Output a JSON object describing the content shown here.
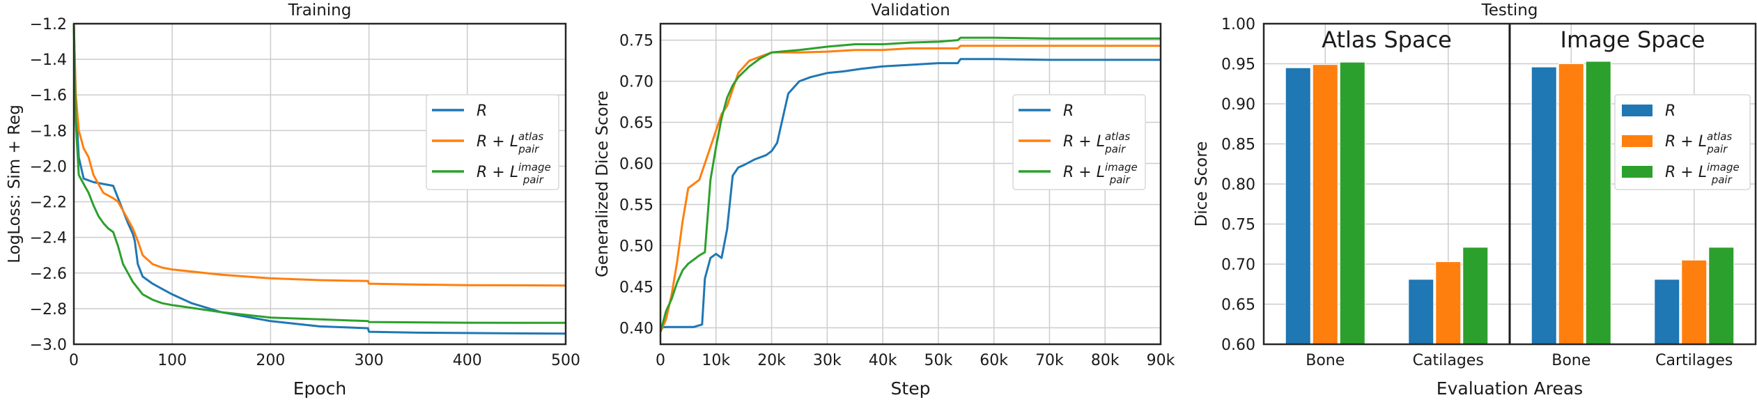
{
  "chart_data": [
    {
      "type": "line",
      "title": "Training",
      "xlabel": "Epoch",
      "ylabel": "LogLoss: Sim + Reg",
      "xlim": [
        0,
        500
      ],
      "ylim": [
        -3.0,
        -1.2
      ],
      "xticks": [
        0,
        100,
        200,
        300,
        400,
        500
      ],
      "xtick_labels": [
        "0",
        "100",
        "200",
        "300",
        "400",
        "500"
      ],
      "yticks": [
        -3.0,
        -2.8,
        -2.6,
        -2.4,
        -2.2,
        -2.0,
        -1.8,
        -1.6,
        -1.4,
        -1.2
      ],
      "ytick_labels": [
        "−3.0",
        "−2.8",
        "−2.6",
        "−2.4",
        "−2.2",
        "−2.0",
        "−1.8",
        "−1.6",
        "−1.4",
        "−1.2"
      ],
      "grid": true,
      "legend_position": "upper-right",
      "series": [
        {
          "name": "R",
          "color": "#1f77b4",
          "x": [
            0,
            2,
            5,
            10,
            20,
            30,
            40,
            45,
            50,
            55,
            60,
            62,
            65,
            70,
            80,
            90,
            100,
            120,
            150,
            200,
            250,
            299,
            300,
            350,
            400,
            450,
            500
          ],
          "y": [
            -1.2,
            -1.65,
            -1.95,
            -2.07,
            -2.09,
            -2.1,
            -2.11,
            -2.18,
            -2.25,
            -2.32,
            -2.38,
            -2.42,
            -2.55,
            -2.62,
            -2.66,
            -2.69,
            -2.72,
            -2.77,
            -2.82,
            -2.87,
            -2.9,
            -2.91,
            -2.93,
            -2.935,
            -2.937,
            -2.939,
            -2.94
          ]
        },
        {
          "name": "R + L_pair^atlas",
          "color": "#ff7f0e",
          "x": [
            0,
            2,
            5,
            10,
            15,
            20,
            30,
            40,
            45,
            50,
            55,
            60,
            65,
            70,
            80,
            90,
            100,
            150,
            200,
            250,
            299,
            300,
            350,
            400,
            450,
            500
          ],
          "y": [
            -1.2,
            -1.6,
            -1.8,
            -1.9,
            -1.95,
            -2.05,
            -2.15,
            -2.18,
            -2.2,
            -2.25,
            -2.3,
            -2.35,
            -2.42,
            -2.5,
            -2.55,
            -2.57,
            -2.58,
            -2.61,
            -2.63,
            -2.64,
            -2.645,
            -2.66,
            -2.665,
            -2.668,
            -2.669,
            -2.67
          ]
        },
        {
          "name": "R + L_pair^image",
          "color": "#2ca02c",
          "x": [
            0,
            2,
            5,
            10,
            15,
            20,
            25,
            30,
            35,
            40,
            45,
            50,
            55,
            60,
            70,
            80,
            90,
            100,
            150,
            200,
            250,
            299,
            300,
            350,
            400,
            450,
            500
          ],
          "y": [
            -1.2,
            -1.75,
            -2.05,
            -2.1,
            -2.15,
            -2.22,
            -2.28,
            -2.32,
            -2.35,
            -2.37,
            -2.45,
            -2.55,
            -2.6,
            -2.65,
            -2.72,
            -2.75,
            -2.77,
            -2.78,
            -2.82,
            -2.85,
            -2.86,
            -2.87,
            -2.875,
            -2.877,
            -2.879,
            -2.88,
            -2.88
          ]
        }
      ]
    },
    {
      "type": "line",
      "title": "Validation",
      "xlabel": "Step",
      "ylabel": "Generalized Dice Score",
      "xlim": [
        0,
        90000
      ],
      "ylim": [
        0.38,
        0.77
      ],
      "xticks": [
        0,
        10000,
        20000,
        30000,
        40000,
        50000,
        60000,
        70000,
        80000,
        90000
      ],
      "xtick_labels": [
        "0",
        "10k",
        "20k",
        "30k",
        "40k",
        "50k",
        "60k",
        "70k",
        "80k",
        "90k"
      ],
      "yticks": [
        0.4,
        0.45,
        0.5,
        0.55,
        0.6,
        0.65,
        0.7,
        0.75
      ],
      "ytick_labels": [
        "0.40",
        "0.45",
        "0.50",
        "0.55",
        "0.60",
        "0.65",
        "0.70",
        "0.75"
      ],
      "grid": true,
      "legend_position": "center-right",
      "series": [
        {
          "name": "R",
          "color": "#1f77b4",
          "x": [
            0,
            1000,
            2000,
            4000,
            6000,
            7500,
            8000,
            9000,
            10000,
            11000,
            12000,
            13000,
            14000,
            15000,
            17000,
            19000,
            20000,
            21000,
            22000,
            23000,
            25000,
            27000,
            30000,
            33000,
            36000,
            40000,
            45000,
            50000,
            53500,
            54000,
            60000,
            70000,
            80000,
            90000
          ],
          "y": [
            0.4,
            0.401,
            0.401,
            0.401,
            0.401,
            0.404,
            0.46,
            0.485,
            0.49,
            0.485,
            0.52,
            0.585,
            0.595,
            0.598,
            0.605,
            0.61,
            0.615,
            0.625,
            0.655,
            0.685,
            0.7,
            0.705,
            0.71,
            0.712,
            0.715,
            0.718,
            0.72,
            0.722,
            0.722,
            0.727,
            0.727,
            0.726,
            0.726,
            0.726
          ]
        },
        {
          "name": "R + L_pair^atlas",
          "color": "#ff7f0e",
          "x": [
            0,
            1000,
            2000,
            3000,
            4000,
            5000,
            6000,
            7000,
            8000,
            9000,
            10000,
            11000,
            12000,
            13000,
            14000,
            16000,
            18000,
            20000,
            25000,
            30000,
            35000,
            40000,
            45000,
            50000,
            53500,
            54000,
            60000,
            70000,
            80000,
            90000
          ],
          "y": [
            0.395,
            0.41,
            0.44,
            0.48,
            0.53,
            0.57,
            0.575,
            0.58,
            0.6,
            0.62,
            0.64,
            0.66,
            0.67,
            0.69,
            0.71,
            0.725,
            0.73,
            0.735,
            0.735,
            0.736,
            0.738,
            0.738,
            0.74,
            0.74,
            0.74,
            0.743,
            0.743,
            0.743,
            0.743,
            0.743
          ]
        },
        {
          "name": "R + L_pair^image",
          "color": "#2ca02c",
          "x": [
            0,
            1000,
            2000,
            3000,
            4000,
            5000,
            6000,
            7000,
            8000,
            9000,
            10000,
            11000,
            12000,
            13000,
            14000,
            16000,
            18000,
            20000,
            25000,
            30000,
            35000,
            40000,
            45000,
            50000,
            53500,
            54000,
            60000,
            70000,
            80000,
            90000
          ],
          "y": [
            0.395,
            0.42,
            0.435,
            0.455,
            0.47,
            0.478,
            0.483,
            0.488,
            0.492,
            0.58,
            0.62,
            0.655,
            0.68,
            0.695,
            0.705,
            0.718,
            0.728,
            0.735,
            0.738,
            0.742,
            0.745,
            0.745,
            0.747,
            0.748,
            0.75,
            0.753,
            0.753,
            0.752,
            0.752,
            0.752
          ]
        }
      ]
    },
    {
      "type": "bar",
      "title": "Testing",
      "xlabel": "Evaluation Areas",
      "ylabel": "Dice Score",
      "ylim": [
        0.6,
        1.0
      ],
      "yticks": [
        0.6,
        0.65,
        0.7,
        0.75,
        0.8,
        0.85,
        0.9,
        0.95,
        1.0
      ],
      "ytick_labels": [
        "0.60",
        "0.65",
        "0.70",
        "0.75",
        "0.80",
        "0.85",
        "0.90",
        "0.95",
        "1.00"
      ],
      "categories": [
        "Bone",
        "Catilages",
        "Bone",
        "Cartilages"
      ],
      "section_labels": [
        "Atlas Space",
        "Image Space"
      ],
      "grid": true,
      "legend_position": "center-right",
      "series": [
        {
          "name": "R",
          "color": "#1f77b4",
          "values": [
            0.945,
            0.681,
            0.946,
            0.681
          ]
        },
        {
          "name": "R + L_pair^atlas",
          "color": "#ff7f0e",
          "values": [
            0.949,
            0.703,
            0.95,
            0.705
          ]
        },
        {
          "name": "R + L_pair^image",
          "color": "#2ca02c",
          "values": [
            0.952,
            0.721,
            0.953,
            0.721
          ]
        }
      ]
    }
  ],
  "legend_labels": {
    "base": "R",
    "plus": "R + L",
    "atlas_sup": "atlas",
    "image_sup": "image",
    "sub": "pair"
  }
}
